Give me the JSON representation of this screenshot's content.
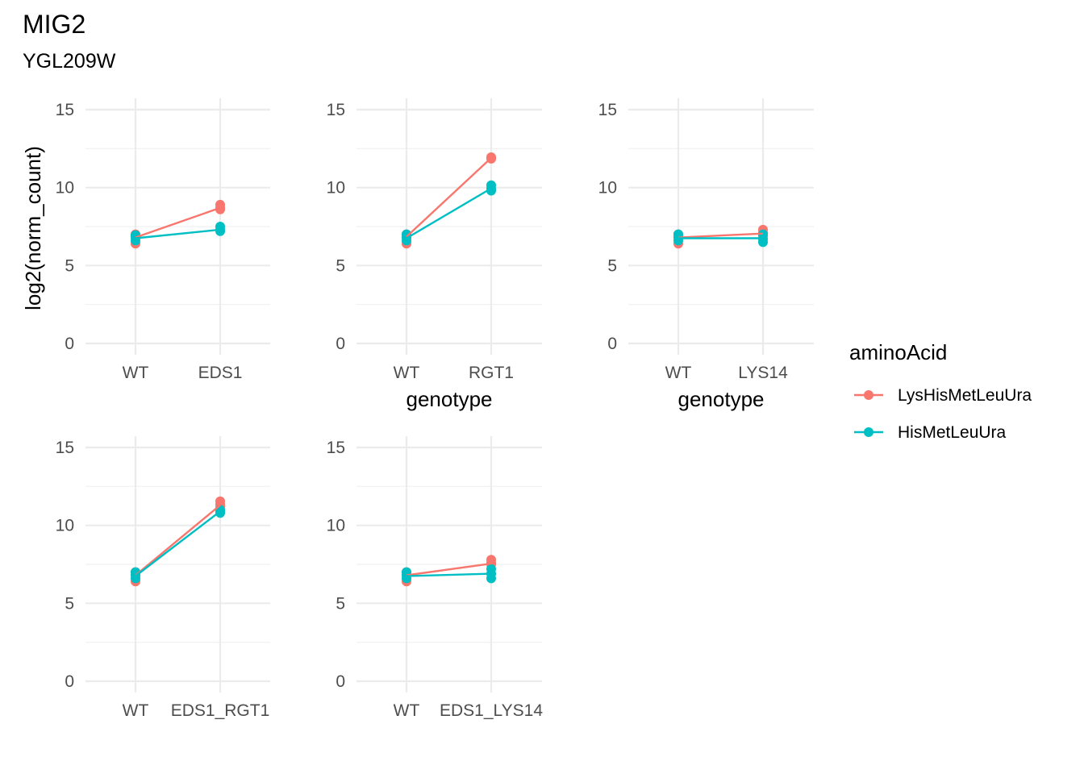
{
  "title": "MIG2",
  "subtitle": "YGL209W",
  "legend": {
    "title": "aminoAcid",
    "entries": [
      {
        "label": "LysHisMetLeuUra",
        "color": "#F8766D"
      },
      {
        "label": "HisMetLeuUra",
        "color": "#00BFC4"
      }
    ]
  },
  "chart_data": {
    "type": "line",
    "ylabel": "log2(norm_count)",
    "xlabel": "genotype",
    "ylim": [
      0,
      15
    ],
    "yticks": [
      0,
      5,
      10,
      15
    ],
    "grid": true,
    "legend_position": "right",
    "panels": [
      {
        "categories": [
          "WT",
          "EDS1"
        ],
        "show_ylabel": true,
        "show_xlabel": false,
        "series": [
          {
            "name": "LysHisMetLeuUra",
            "mean": [
              6.8,
              8.7
            ],
            "points": [
              [
                6.4,
                6.8,
                7.0
              ],
              [
                8.6,
                8.7,
                8.9
              ]
            ]
          },
          {
            "name": "HisMetLeuUra",
            "mean": [
              6.75,
              7.3
            ],
            "points": [
              [
                6.6,
                6.8,
                6.95
              ],
              [
                7.2,
                7.3,
                7.5
              ]
            ]
          }
        ]
      },
      {
        "categories": [
          "WT",
          "RGT1"
        ],
        "show_ylabel": false,
        "show_xlabel": true,
        "series": [
          {
            "name": "LysHisMetLeuUra",
            "mean": [
              6.85,
              11.9
            ],
            "points": [
              [
                6.4,
                6.8,
                7.0
              ],
              [
                11.85,
                11.9,
                11.95
              ]
            ]
          },
          {
            "name": "HisMetLeuUra",
            "mean": [
              6.75,
              9.95
            ],
            "points": [
              [
                6.6,
                6.8,
                7.0
              ],
              [
                9.8,
                9.95,
                10.15
              ]
            ]
          }
        ]
      },
      {
        "categories": [
          "WT",
          "LYS14"
        ],
        "show_ylabel": false,
        "show_xlabel": true,
        "series": [
          {
            "name": "LysHisMetLeuUra",
            "mean": [
              6.8,
              7.05
            ],
            "points": [
              [
                6.4,
                6.8,
                7.0
              ],
              [
                6.9,
                7.1,
                7.3
              ]
            ]
          },
          {
            "name": "HisMetLeuUra",
            "mean": [
              6.75,
              6.75
            ],
            "points": [
              [
                6.6,
                6.8,
                7.0
              ],
              [
                6.5,
                6.7,
                7.0
              ]
            ]
          }
        ]
      },
      {
        "categories": [
          "WT",
          "EDS1_RGT1"
        ],
        "show_ylabel": false,
        "show_xlabel": false,
        "series": [
          {
            "name": "LysHisMetLeuUra",
            "mean": [
              6.8,
              11.3
            ],
            "points": [
              [
                6.4,
                6.8,
                7.0
              ],
              [
                11.2,
                11.35,
                11.55
              ]
            ]
          },
          {
            "name": "HisMetLeuUra",
            "mean": [
              6.75,
              10.9
            ],
            "points": [
              [
                6.6,
                6.8,
                7.0
              ],
              [
                10.8,
                10.9,
                11.0
              ]
            ]
          }
        ]
      },
      {
        "categories": [
          "WT",
          "EDS1_LYS14"
        ],
        "show_ylabel": false,
        "show_xlabel": false,
        "series": [
          {
            "name": "LysHisMetLeuUra",
            "mean": [
              6.8,
              7.55
            ],
            "points": [
              [
                6.4,
                6.8,
                7.0
              ],
              [
                7.5,
                7.6,
                7.8
              ]
            ]
          },
          {
            "name": "HisMetLeuUra",
            "mean": [
              6.75,
              6.9
            ],
            "points": [
              [
                6.6,
                6.8,
                7.0
              ],
              [
                6.6,
                6.9,
                7.2
              ]
            ]
          }
        ]
      }
    ]
  }
}
